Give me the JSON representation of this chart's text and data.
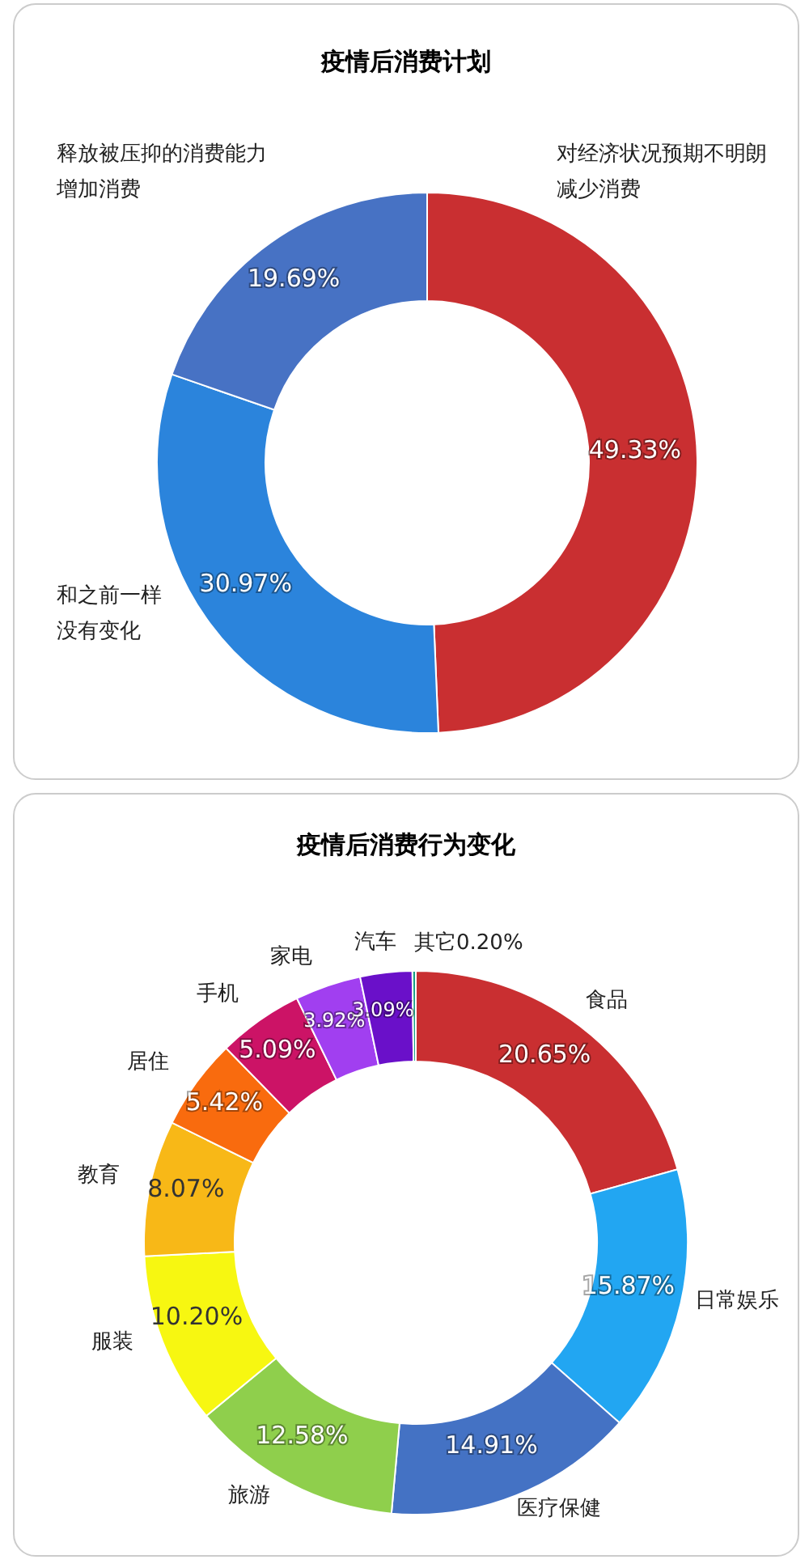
{
  "chart_data": [
    {
      "type": "donut",
      "title": "疫情后消费计划",
      "categories": [
        "对经济状况预期不明朗减少消费",
        "和之前一样没有变化",
        "释放被压抑的消费能力增加消费"
      ],
      "values": [
        49.33,
        30.97,
        19.69
      ],
      "value_labels": [
        "49.33%",
        "30.97%",
        "19.69%"
      ],
      "colors": [
        "#c92f31",
        "#2b84dc",
        "#4772c4"
      ],
      "legend": false
    },
    {
      "type": "donut",
      "title": "疫情后消费行为变化",
      "categories": [
        "食品",
        "日常娱乐",
        "医疗保健",
        "旅游",
        "服装",
        "教育",
        "居住",
        "手机",
        "家电",
        "汽车",
        "其它"
      ],
      "values": [
        20.65,
        15.87,
        14.91,
        12.58,
        10.2,
        8.07,
        5.42,
        5.09,
        3.92,
        3.09,
        0.2
      ],
      "value_labels": [
        "20.65%",
        "15.87%",
        "14.91%",
        "12.58%",
        "10.20%",
        "8.07%",
        "5.42%",
        "5.09%",
        "3.92%",
        "3.09%",
        "0.20%"
      ],
      "colors": [
        "#c92f31",
        "#22a6f2",
        "#4472c4",
        "#8fcf4c",
        "#f7f711",
        "#f8b817",
        "#f96b0e",
        "#cc1366",
        "#a13ff0",
        "#6a10c9",
        "#17a085"
      ],
      "legend": false
    }
  ]
}
